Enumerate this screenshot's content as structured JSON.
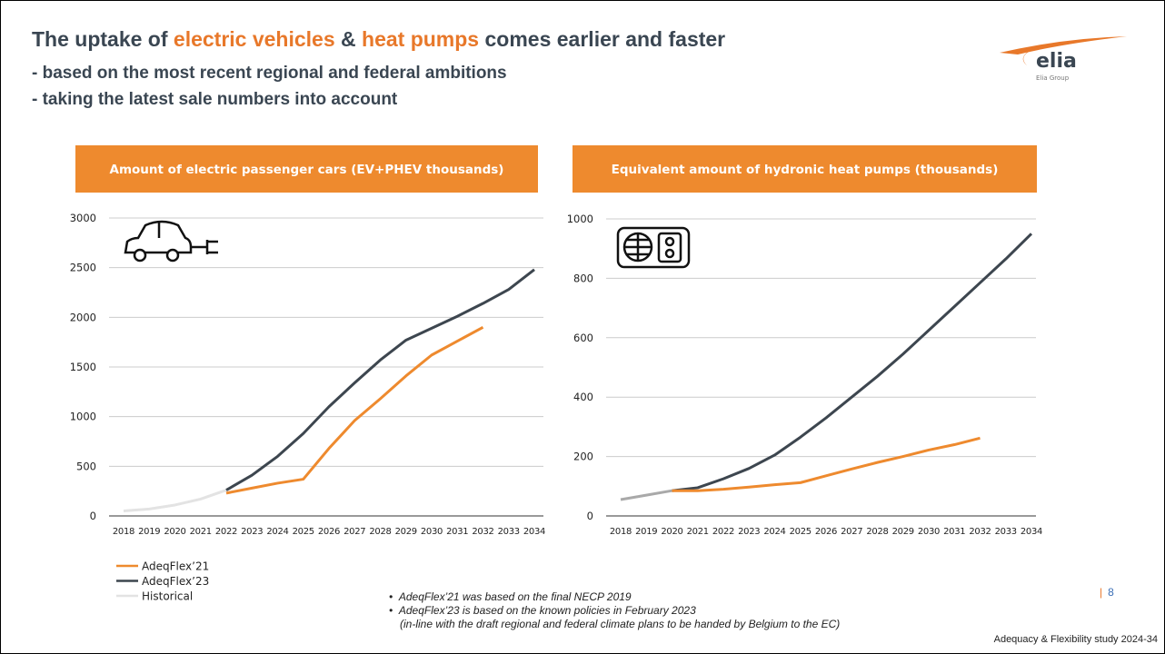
{
  "header": {
    "title": [
      "The uptake of ",
      "electric vehicles",
      " & ",
      "heat pumps",
      " comes earlier and faster"
    ],
    "subtitles": [
      "- based on the most recent regional and federal ambitions",
      "- taking the latest sale numbers into account"
    ]
  },
  "logo": {
    "name": "elia",
    "group": "Elia Group"
  },
  "chart_data": [
    {
      "type": "line",
      "title": "Amount of electric passenger cars (EV+PHEV thousands)",
      "categories": [
        "2018",
        "2019",
        "2020",
        "2021",
        "2022",
        "2023",
        "2024",
        "2025",
        "2026",
        "2027",
        "2028",
        "2029",
        "2030",
        "2031",
        "2032",
        "2033",
        "2034"
      ],
      "series": [
        {
          "name": "AdeqFlex’21",
          "color": "#ee8a2e",
          "values": [
            null,
            null,
            null,
            null,
            230,
            280,
            330,
            370,
            680,
            960,
            1180,
            1410,
            1620,
            1760,
            1900,
            null,
            null
          ]
        },
        {
          "name": "AdeqFlex’23",
          "color": "#3d464f",
          "values": [
            null,
            null,
            null,
            null,
            260,
            410,
            600,
            830,
            1100,
            1340,
            1570,
            1770,
            1890,
            2010,
            2140,
            2280,
            2480
          ]
        },
        {
          "name": "Historical",
          "color": "#e3e3e3",
          "values": [
            50,
            70,
            110,
            170,
            260,
            null,
            null,
            null,
            null,
            null,
            null,
            null,
            null,
            null,
            null,
            null,
            null
          ]
        }
      ],
      "ylim": [
        0,
        3000
      ],
      "yticks": [
        0,
        500,
        1000,
        1500,
        2000,
        2500,
        3000
      ],
      "grid": true
    },
    {
      "type": "line",
      "title": "Equivalent amount of hydronic heat pumps (thousands)",
      "categories": [
        "2018",
        "2019",
        "2020",
        "2021",
        "2022",
        "2023",
        "2024",
        "2025",
        "2026",
        "2027",
        "2028",
        "2029",
        "2030",
        "2031",
        "2032",
        "2033",
        "2034"
      ],
      "series": [
        {
          "color": "#ee8a2e",
          "values": [
            null,
            null,
            85,
            85,
            90,
            97,
            105,
            112,
            135,
            158,
            180,
            200,
            222,
            240,
            262,
            null,
            null
          ]
        },
        {
          "color": "#3d464f",
          "values": [
            null,
            null,
            85,
            95,
            125,
            160,
            205,
            265,
            330,
            400,
            470,
            545,
            625,
            705,
            785,
            865,
            950
          ]
        },
        {
          "color": "#a9a9a9",
          "values": [
            55,
            70,
            85,
            null,
            null,
            null,
            null,
            null,
            null,
            null,
            null,
            null,
            null,
            null,
            null,
            null,
            null
          ]
        }
      ],
      "ylim": [
        0,
        1000
      ],
      "yticks": [
        0,
        200,
        400,
        600,
        800,
        1000
      ],
      "grid": true
    }
  ],
  "notes": [
    "AdeqFlex’21 was based on the final NECP 2019",
    "AdeqFlex’23 is based on the known policies in February 2023",
    "(in-line with the draft regional and federal climate plans to be handed by Belgium to the EC)"
  ],
  "page_number": "8",
  "footer": "Adequacy & Flexibility study 2024-34"
}
